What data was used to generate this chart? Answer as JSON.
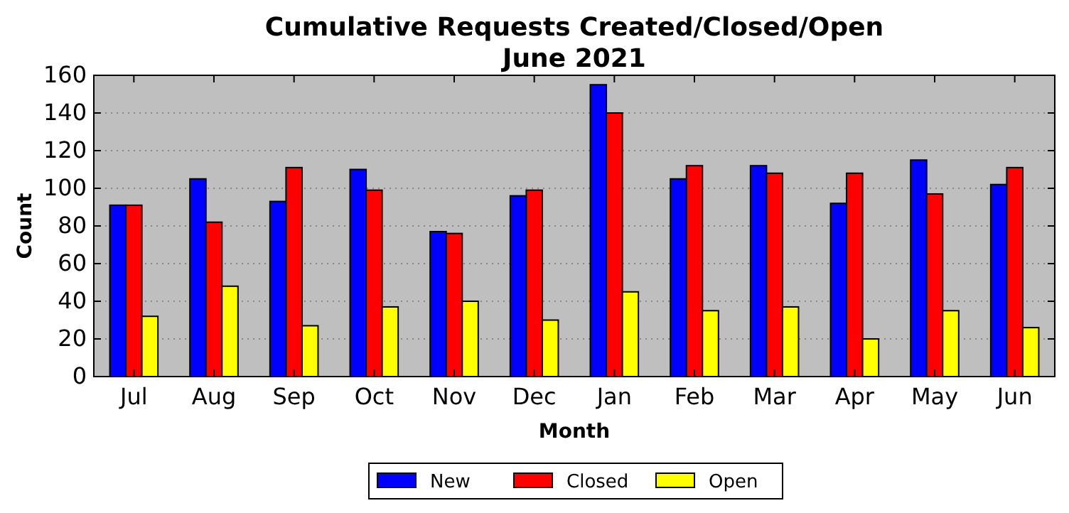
{
  "chart_data": {
    "type": "bar",
    "title": "Cumulative Requests Created/Closed/Open",
    "subtitle": "June 2021",
    "xlabel": "Month",
    "ylabel": "Count",
    "categories": [
      "Jul",
      "Aug",
      "Sep",
      "Oct",
      "Nov",
      "Dec",
      "Jan",
      "Feb",
      "Mar",
      "Apr",
      "May",
      "Jun"
    ],
    "series": [
      {
        "name": "New",
        "color": "#0000ff",
        "values": [
          91,
          105,
          93,
          110,
          77,
          96,
          155,
          105,
          112,
          92,
          115,
          102
        ]
      },
      {
        "name": "Closed",
        "color": "#ff0000",
        "values": [
          91,
          82,
          111,
          99,
          76,
          99,
          140,
          112,
          108,
          108,
          97,
          111
        ]
      },
      {
        "name": "Open",
        "color": "#ffff00",
        "values": [
          32,
          48,
          27,
          37,
          40,
          30,
          45,
          35,
          37,
          20,
          35,
          26
        ]
      }
    ],
    "ylim": [
      0,
      160
    ],
    "yticks": [
      0,
      20,
      40,
      60,
      80,
      100,
      120,
      140,
      160
    ],
    "grid": "y",
    "legend": "bottom"
  }
}
